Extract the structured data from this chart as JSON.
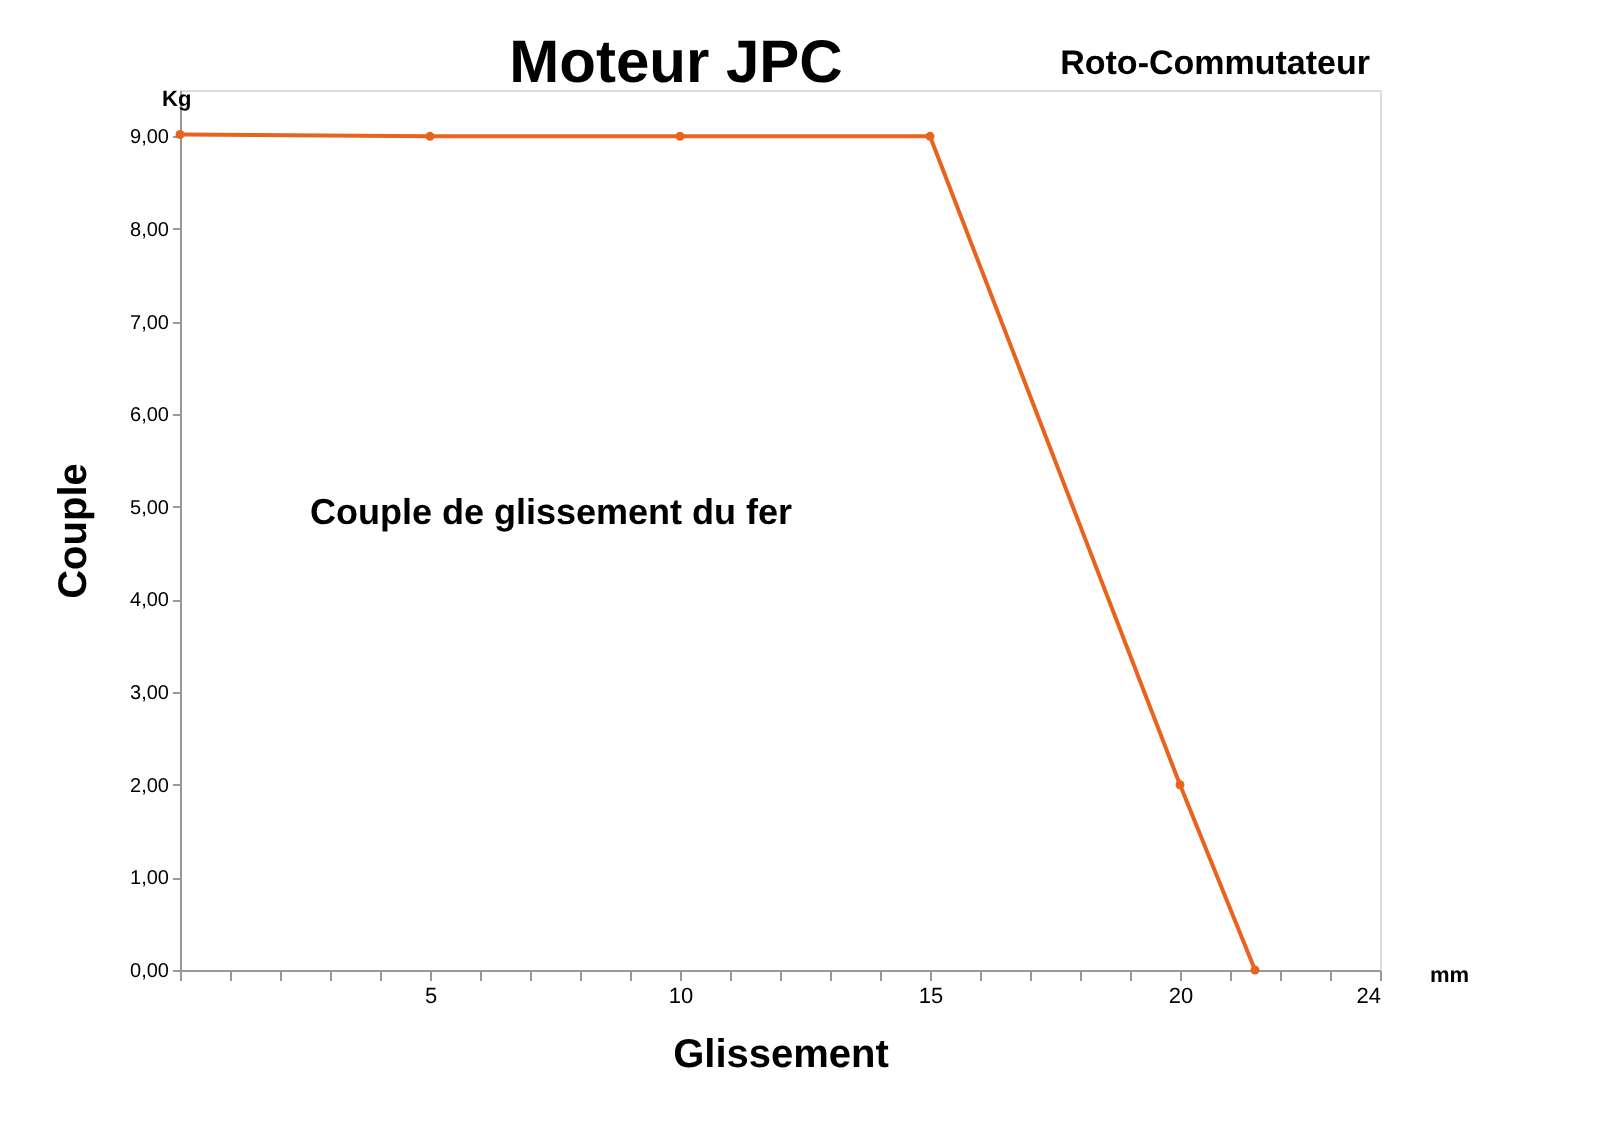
{
  "chart_data": {
    "type": "line",
    "title": "Moteur JPC",
    "xlabel": "Glissement",
    "ylabel": "Couple",
    "annotations": [
      "Kg",
      "mm",
      "Roto-Commutateur",
      "Couple de glissement du fer"
    ],
    "x": [
      0,
      5,
      10,
      15,
      20,
      21.5
    ],
    "series": [
      {
        "color": "#e8641e",
        "values": [
          9.02,
          9,
          9,
          9,
          2,
          0
        ]
      }
    ],
    "xlim": [
      0,
      24
    ],
    "xticks": [
      {
        "value": 0,
        "label": null
      },
      {
        "value": 1,
        "label": null
      },
      {
        "value": 2,
        "label": null
      },
      {
        "value": 3,
        "label": null
      },
      {
        "value": 4,
        "label": null
      },
      5,
      {
        "value": 6,
        "label": null
      },
      {
        "value": 7,
        "label": null
      },
      {
        "value": 8,
        "label": null
      },
      {
        "value": 9,
        "label": null
      },
      10,
      {
        "value": 11,
        "label": null
      },
      {
        "value": 12,
        "label": null
      },
      {
        "value": 13,
        "label": null
      },
      {
        "value": 14,
        "label": null
      },
      15,
      {
        "value": 16,
        "label": null
      },
      {
        "value": 17,
        "label": null
      },
      {
        "value": 18,
        "label": null
      },
      {
        "value": 19,
        "label": null
      },
      20,
      {
        "value": 21,
        "label": null
      },
      {
        "value": 22,
        "label": null
      },
      {
        "value": 23,
        "label": null
      },
      24
    ],
    "ylim": [
      0,
      9.5
    ],
    "yticks": [
      {
        "value": 0,
        "label": "0,00"
      },
      {
        "value": 1,
        "label": "1,00"
      },
      {
        "value": 2,
        "label": "2,00"
      },
      {
        "value": 3,
        "label": "3,00"
      },
      {
        "value": 4,
        "label": "4,00"
      },
      {
        "value": 5,
        "label": "5,00"
      },
      {
        "value": 6,
        "label": "6,00"
      },
      {
        "value": 7,
        "label": "7,00"
      },
      {
        "value": 8,
        "label": "8,00"
      },
      {
        "value": 9,
        "label": "9,00"
      }
    ],
    "marker": "circle",
    "line_style": "solid",
    "grid": false
  }
}
